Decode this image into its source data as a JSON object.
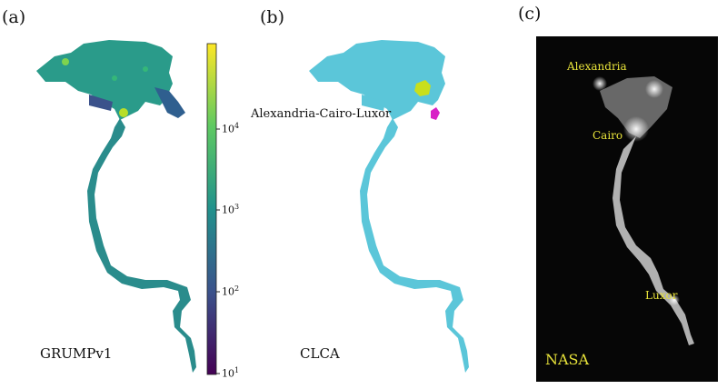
{
  "panels": {
    "a": {
      "label": "(a)",
      "caption": "GRUMPv1",
      "colorbar": {
        "ticks": [
          {
            "base": "10",
            "exp": "4"
          },
          {
            "base": "10",
            "exp": "3"
          },
          {
            "base": "10",
            "exp": "2"
          },
          {
            "base": "10",
            "exp": "1"
          }
        ],
        "scale": "log",
        "range": [
          10,
          80000
        ],
        "colormap": [
          "#440154",
          "#3b528b",
          "#21918c",
          "#5ec962",
          "#fde725"
        ]
      }
    },
    "b": {
      "label": "(b)",
      "caption": "CLCA",
      "cluster_label": "Alexandria-Cairo-Luxor",
      "colors": {
        "main": "#5bc6d9",
        "cluster2": "#c9df1c",
        "cluster3": "#d822c6"
      }
    },
    "c": {
      "label": "(c)",
      "source": "NASA",
      "cities": [
        "Alexandria",
        "Cairo",
        "Luxor"
      ],
      "colors": {
        "background": "#060606",
        "text": "#e8e33a"
      }
    }
  }
}
